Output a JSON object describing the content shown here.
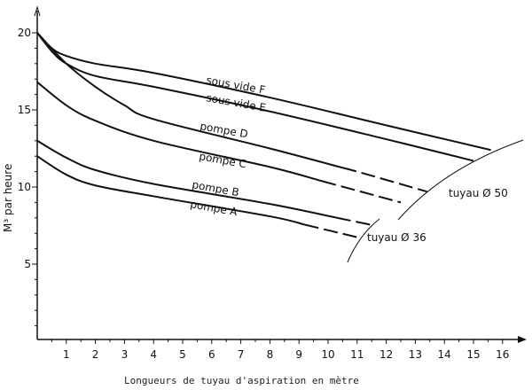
{
  "chart_data": {
    "type": "line",
    "title": "",
    "xlabel": "Longueurs de tuyau d'aspiration en mètre",
    "ylabel": "M³ par heure",
    "xlim": [
      0,
      17
    ],
    "ylim": [
      0,
      21
    ],
    "xticks": [
      1,
      2,
      3,
      4,
      5,
      6,
      7,
      8,
      9,
      10,
      11,
      12,
      13,
      14,
      15,
      16
    ],
    "yticks": [
      5,
      10,
      15,
      20
    ],
    "grid": false,
    "series": [
      {
        "name": "sous vide F",
        "points": [
          [
            0,
            20
          ],
          [
            0.5,
            19
          ],
          [
            1,
            18.5
          ],
          [
            2,
            18
          ],
          [
            4,
            17.4
          ],
          [
            8,
            15.8
          ],
          [
            12,
            14
          ],
          [
            15.6,
            12.4
          ]
        ],
        "dash_from": null
      },
      {
        "name": "sous vide E",
        "points": [
          [
            0,
            20
          ],
          [
            0.5,
            18.8
          ],
          [
            1,
            18
          ],
          [
            2,
            17.2
          ],
          [
            4,
            16.5
          ],
          [
            8,
            14.9
          ],
          [
            12,
            13.1
          ],
          [
            15,
            11.7
          ]
        ],
        "dash_from": null
      },
      {
        "name": "pompe D",
        "points": [
          [
            0,
            20
          ],
          [
            1,
            18
          ],
          [
            2,
            16.5
          ],
          [
            3,
            15.3
          ],
          [
            4,
            14.4
          ],
          [
            8,
            12.5
          ],
          [
            11,
            11
          ],
          [
            13.4,
            9.7
          ]
        ],
        "dash_from": 10.5
      },
      {
        "name": "pompe C",
        "points": [
          [
            0,
            16.8
          ],
          [
            1,
            15.3
          ],
          [
            2,
            14.3
          ],
          [
            4,
            13
          ],
          [
            8,
            11.3
          ],
          [
            12.5,
            9
          ]
        ],
        "dash_from": 9.8
      },
      {
        "name": "pompe B",
        "points": [
          [
            0,
            13
          ],
          [
            1,
            11.9
          ],
          [
            2,
            11.1
          ],
          [
            4,
            10.2
          ],
          [
            8,
            8.9
          ],
          [
            11.6,
            7.5
          ]
        ],
        "dash_from": 10.3
      },
      {
        "name": "pompe A",
        "points": [
          [
            0,
            12
          ],
          [
            1,
            10.8
          ],
          [
            2,
            10.1
          ],
          [
            4,
            9.4
          ],
          [
            8,
            8.1
          ],
          [
            11.1,
            6.7
          ]
        ],
        "dash_from": 9.2
      }
    ],
    "annotations": [
      "tuyau Ø 50",
      "tuyau Ø 36"
    ],
    "colors": {
      "line": "#111111",
      "background": "#ffffff"
    }
  }
}
